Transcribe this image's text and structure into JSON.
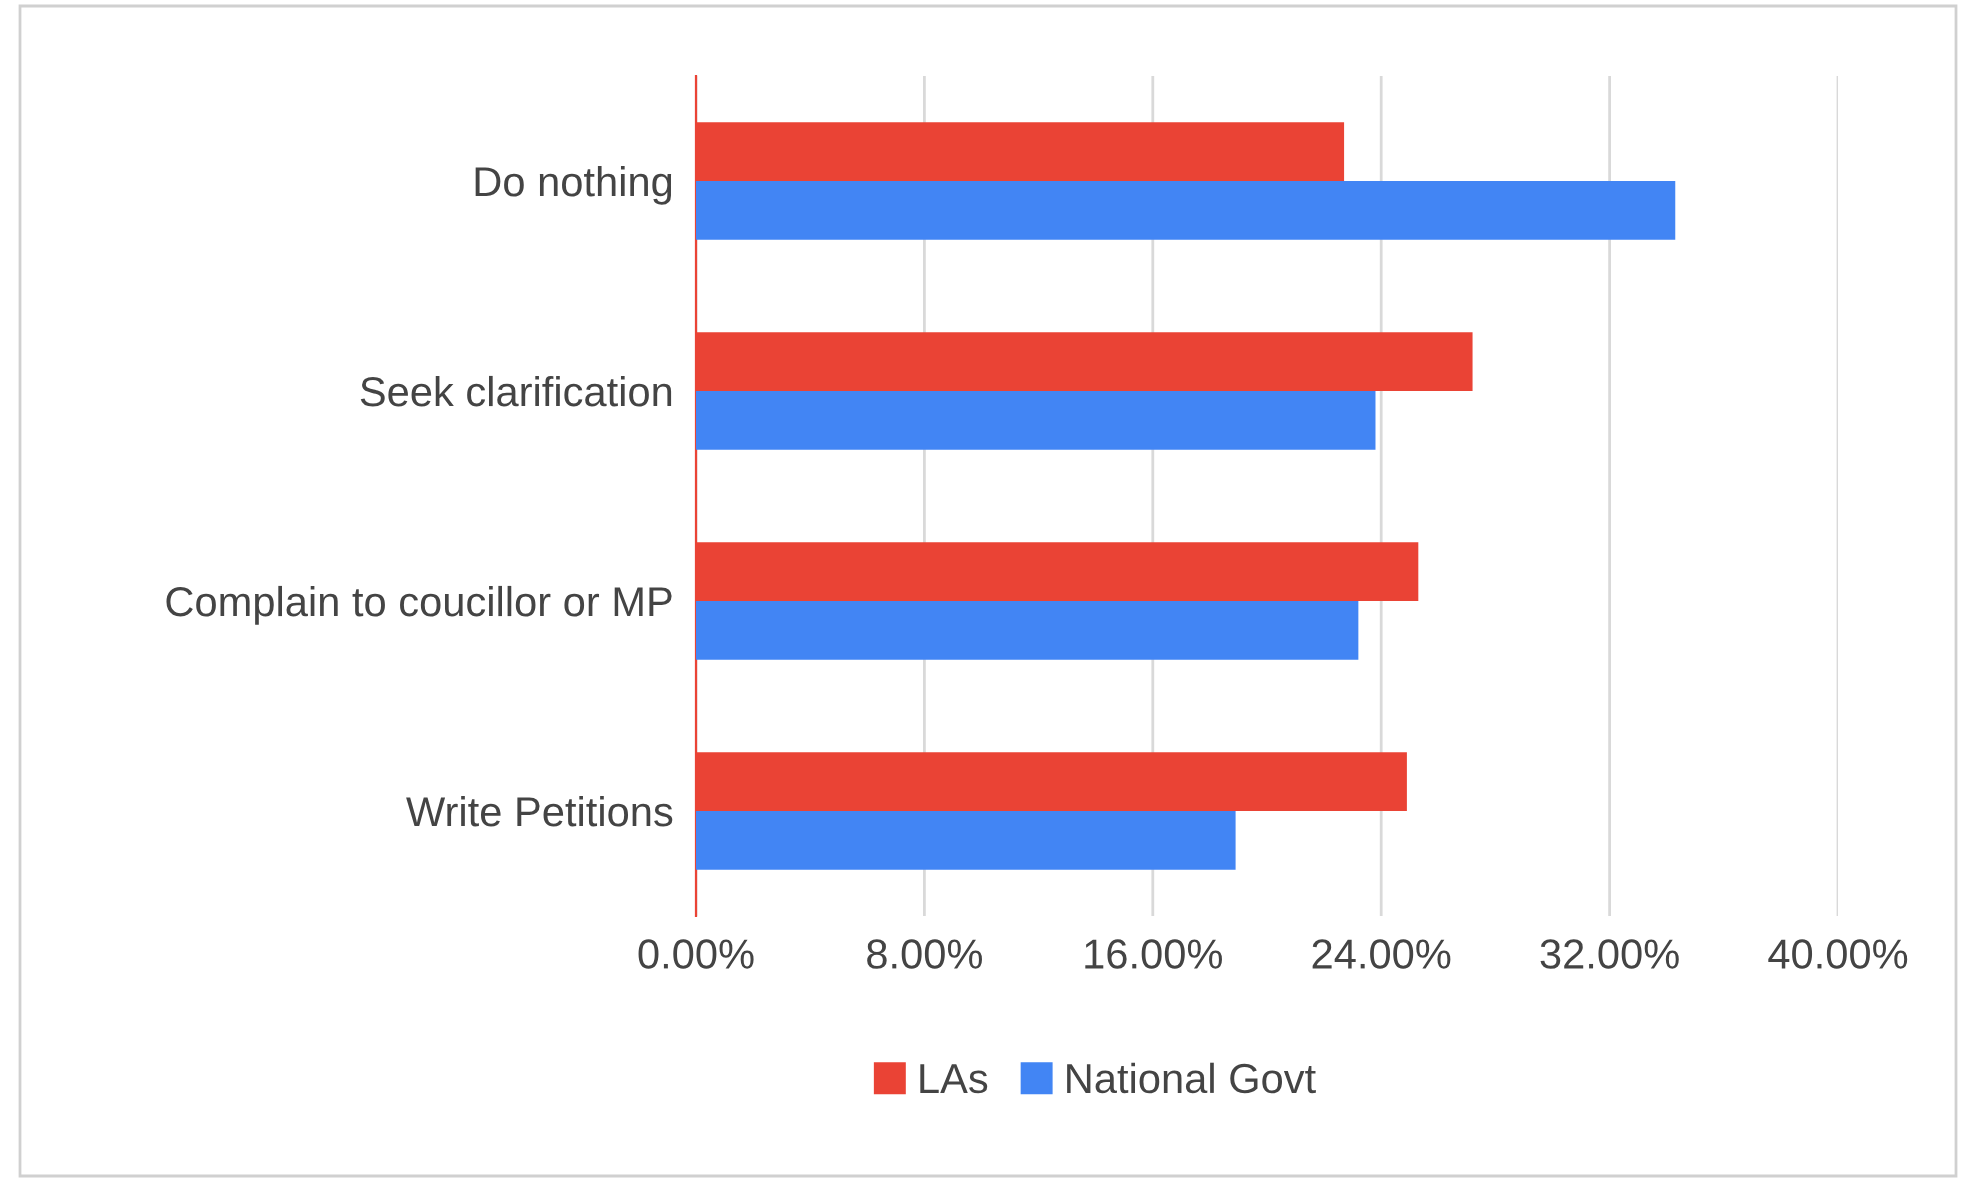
{
  "chart_data": {
    "type": "bar",
    "orientation": "horizontal",
    "categories": [
      "Do nothing",
      "Seek clarification",
      "Complain to coucillor or MP",
      "Write Petitions"
    ],
    "series": [
      {
        "name": "LAs",
        "color": "#ea4335",
        "values": [
          22.7,
          27.2,
          25.3,
          24.9
        ]
      },
      {
        "name": "National Govt",
        "color": "#4285f4",
        "values": [
          34.3,
          23.8,
          23.2,
          18.9
        ]
      }
    ],
    "xlim": [
      0,
      40
    ],
    "xticks": [
      {
        "value": 0,
        "label": "0.00%"
      },
      {
        "value": 8,
        "label": "8.00%"
      },
      {
        "value": 16,
        "label": "16.00%"
      },
      {
        "value": 24,
        "label": "24.00%"
      },
      {
        "value": 32,
        "label": "32.00%"
      },
      {
        "value": 40,
        "label": "40.00%"
      }
    ],
    "grid": "x",
    "legend": "bottom"
  }
}
